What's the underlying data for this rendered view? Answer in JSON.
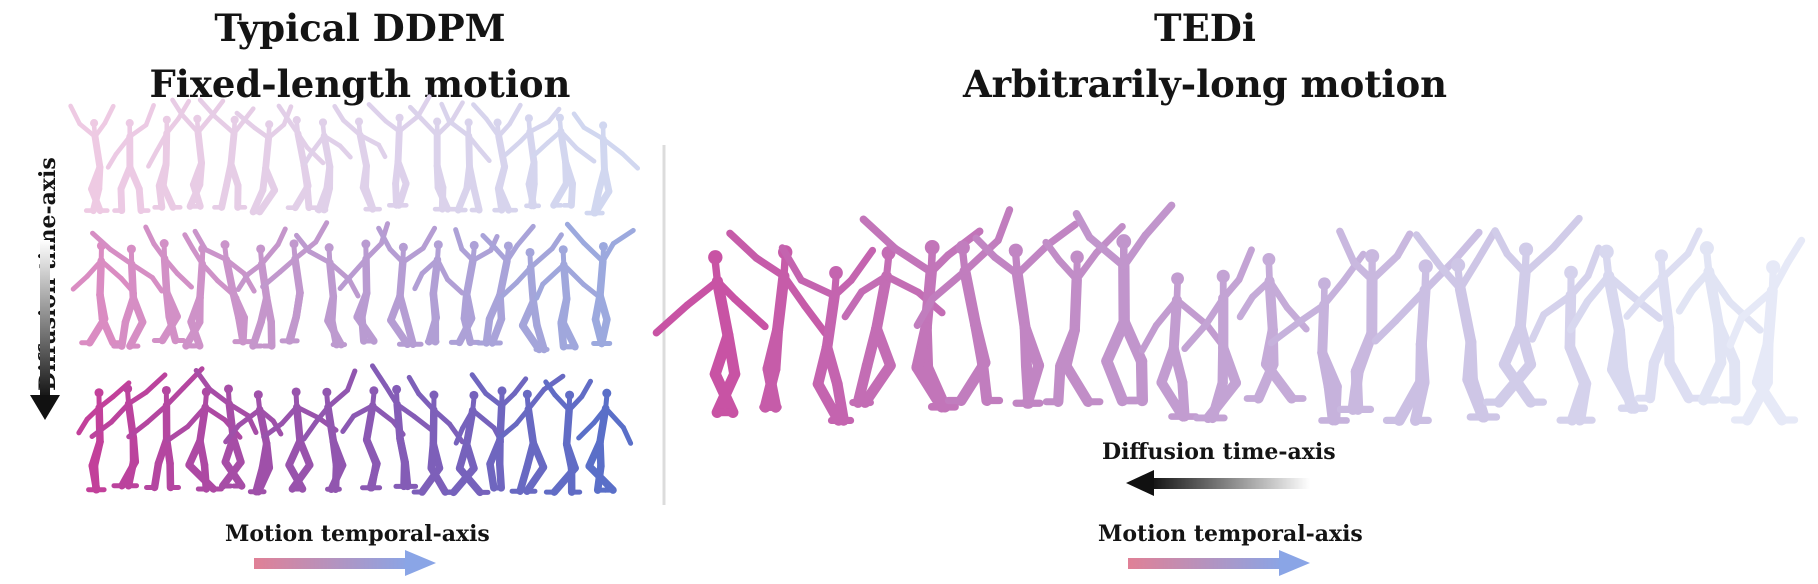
{
  "left_panel": {
    "title_line1": "Typical DDPM",
    "title_line2": "Fixed-length motion",
    "diffusion_axis_label": "Diffusion time-axis",
    "motion_axis_label": "Motion temporal-axis"
  },
  "right_panel": {
    "title_line1": "TEDi",
    "title_line2": "Arbitrarily-long motion",
    "diffusion_axis_label": "Diffusion time-axis",
    "motion_axis_label": "Motion temporal-axis"
  },
  "colors": {
    "figure_pink": "#c2409a",
    "figure_blue": "#5a6fc8",
    "arrow_start": "#e08096",
    "arrow_end": "#8aa5e6",
    "divider": "#dcdcdc",
    "diffusion_arrow_dark": "#111111"
  },
  "rows": {
    "left_row_opacity": [
      0.28,
      0.6,
      1.0
    ],
    "left_row_figure_count": 16,
    "right_figure_count": 22
  }
}
